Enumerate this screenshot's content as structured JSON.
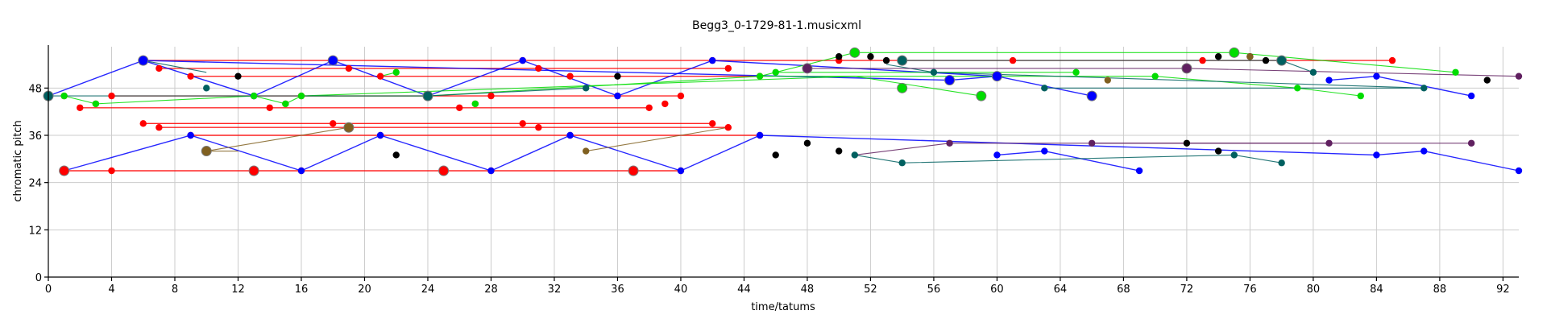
{
  "chart_data": {
    "type": "scatter",
    "title": "Begg3_0-1729-81-1.musicxml",
    "xlabel": "time/tatums",
    "ylabel": "chromatic pitch",
    "xlim": [
      0,
      93
    ],
    "ylim": [
      0,
      58.5
    ],
    "xticks": [
      0,
      4,
      8,
      12,
      16,
      20,
      24,
      28,
      32,
      36,
      40,
      44,
      48,
      52,
      56,
      60,
      64,
      68,
      72,
      76,
      80,
      84,
      88,
      92
    ],
    "yticks": [
      0,
      12,
      24,
      36,
      48
    ],
    "grid": true,
    "series": [
      {
        "color": "#ff0000",
        "points": [
          [
            1,
            27
          ],
          [
            4,
            27
          ],
          [
            13,
            27
          ],
          [
            16,
            27
          ],
          [
            25,
            27
          ],
          [
            28,
            27
          ],
          [
            37,
            27
          ],
          [
            40,
            27
          ],
          [
            6,
            55
          ],
          [
            7,
            53
          ],
          [
            9,
            51
          ],
          [
            18,
            55
          ],
          [
            19,
            53
          ],
          [
            21,
            51
          ],
          [
            30,
            55
          ],
          [
            31,
            53
          ],
          [
            33,
            51
          ],
          [
            42,
            55
          ],
          [
            43,
            53
          ],
          [
            45,
            51
          ],
          [
            4,
            46
          ],
          [
            2,
            43
          ],
          [
            14,
            43
          ],
          [
            16,
            46
          ],
          [
            26,
            43
          ],
          [
            28,
            46
          ],
          [
            38,
            43
          ],
          [
            40,
            46
          ],
          [
            6,
            39
          ],
          [
            7,
            38
          ],
          [
            9,
            36
          ],
          [
            18,
            39
          ],
          [
            19,
            38
          ],
          [
            21,
            36
          ],
          [
            30,
            39
          ],
          [
            31,
            38
          ],
          [
            33,
            36
          ],
          [
            42,
            39
          ],
          [
            43,
            38
          ],
          [
            45,
            36
          ],
          [
            50,
            55
          ],
          [
            61,
            55
          ],
          [
            73,
            55
          ],
          [
            85,
            55
          ],
          [
            1,
            46
          ],
          [
            3,
            44
          ],
          [
            13,
            46
          ],
          [
            15,
            44
          ],
          [
            27,
            44
          ],
          [
            39,
            44
          ],
          [
            36,
            46
          ]
        ],
        "big": [
          [
            1,
            27
          ],
          [
            13,
            27
          ],
          [
            25,
            27
          ],
          [
            37,
            27
          ]
        ],
        "lines": [
          [
            [
              1,
              27
            ],
            [
              40,
              27
            ]
          ],
          [
            [
              6,
              55
            ],
            [
              85,
              55
            ]
          ],
          [
            [
              7,
              53
            ],
            [
              43,
              53
            ]
          ],
          [
            [
              9,
              51
            ],
            [
              45,
              51
            ]
          ],
          [
            [
              4,
              46
            ],
            [
              40,
              46
            ]
          ],
          [
            [
              2,
              43
            ],
            [
              38,
              43
            ]
          ],
          [
            [
              6,
              39
            ],
            [
              42,
              39
            ]
          ],
          [
            [
              7,
              38
            ],
            [
              43,
              38
            ]
          ],
          [
            [
              9,
              36
            ],
            [
              45,
              36
            ]
          ]
        ]
      },
      {
        "color": "#0000ff",
        "points": [
          [
            0,
            46
          ],
          [
            6,
            55
          ],
          [
            13,
            46
          ],
          [
            18,
            55
          ],
          [
            24,
            46
          ],
          [
            30,
            55
          ],
          [
            36,
            46
          ],
          [
            42,
            55
          ],
          [
            9,
            36
          ],
          [
            16,
            27
          ],
          [
            21,
            36
          ],
          [
            28,
            27
          ],
          [
            33,
            36
          ],
          [
            40,
            27
          ],
          [
            45,
            36
          ],
          [
            57,
            50
          ],
          [
            60,
            51
          ],
          [
            66,
            46
          ],
          [
            81,
            50
          ],
          [
            84,
            51
          ],
          [
            90,
            46
          ],
          [
            60,
            31
          ],
          [
            63,
            32
          ],
          [
            69,
            27
          ],
          [
            84,
            31
          ],
          [
            87,
            32
          ],
          [
            93,
            27
          ],
          [
            48,
            53
          ]
        ],
        "big": [
          [
            6,
            55
          ],
          [
            18,
            55
          ],
          [
            57,
            50
          ],
          [
            60,
            51
          ],
          [
            66,
            46
          ]
        ],
        "lines": [
          [
            [
              0,
              46
            ],
            [
              6,
              55
            ],
            [
              13,
              46
            ],
            [
              18,
              55
            ],
            [
              24,
              46
            ],
            [
              30,
              55
            ],
            [
              36,
              46
            ],
            [
              42,
              55
            ],
            [
              60,
              51
            ],
            [
              66,
              46
            ]
          ],
          [
            [
              6,
              55
            ],
            [
              57,
              50
            ],
            [
              60,
              51
            ]
          ],
          [
            [
              1,
              27
            ],
            [
              9,
              36
            ],
            [
              16,
              27
            ],
            [
              21,
              36
            ],
            [
              28,
              27
            ],
            [
              33,
              36
            ],
            [
              40,
              27
            ],
            [
              45,
              36
            ],
            [
              84,
              31
            ],
            [
              87,
              32
            ],
            [
              93,
              27
            ]
          ],
          [
            [
              60,
              31
            ],
            [
              63,
              32
            ],
            [
              69,
              27
            ]
          ],
          [
            [
              81,
              50
            ],
            [
              84,
              51
            ],
            [
              90,
              46
            ]
          ]
        ]
      },
      {
        "color": "#00dd00",
        "points": [
          [
            1,
            46
          ],
          [
            3,
            44
          ],
          [
            13,
            46
          ],
          [
            15,
            44
          ],
          [
            16,
            46
          ],
          [
            22,
            52
          ],
          [
            24,
            46
          ],
          [
            27,
            44
          ],
          [
            45,
            51
          ],
          [
            46,
            52
          ],
          [
            51,
            57
          ],
          [
            54,
            48
          ],
          [
            59,
            46
          ],
          [
            65,
            52
          ],
          [
            70,
            51
          ],
          [
            75,
            57
          ],
          [
            79,
            48
          ],
          [
            83,
            46
          ],
          [
            89,
            52
          ]
        ],
        "big": [
          [
            51,
            57
          ],
          [
            54,
            48
          ],
          [
            59,
            46
          ],
          [
            75,
            57
          ]
        ],
        "lines": [
          [
            [
              1,
              46
            ],
            [
              3,
              44
            ],
            [
              13,
              46
            ],
            [
              15,
              44
            ],
            [
              16,
              46
            ],
            [
              24,
              46
            ],
            [
              45,
              51
            ],
            [
              51,
              57
            ],
            [
              75,
              57
            ],
            [
              89,
              52
            ]
          ],
          [
            [
              16,
              46
            ],
            [
              51,
              51
            ],
            [
              59,
              46
            ]
          ],
          [
            [
              21,
              51
            ],
            [
              22,
              52
            ]
          ],
          [
            [
              45,
              51
            ],
            [
              70,
              51
            ],
            [
              79,
              48
            ],
            [
              83,
              46
            ]
          ],
          [
            [
              46,
              52
            ],
            [
              65,
              52
            ]
          ]
        ]
      },
      {
        "color": "#006060",
        "points": [
          [
            0,
            46
          ],
          [
            10,
            48
          ],
          [
            24,
            46
          ],
          [
            34,
            48
          ],
          [
            54,
            55
          ],
          [
            56,
            52
          ],
          [
            63,
            48
          ],
          [
            78,
            55
          ],
          [
            80,
            52
          ],
          [
            87,
            48
          ],
          [
            51,
            31
          ],
          [
            54,
            29
          ],
          [
            75,
            31
          ],
          [
            78,
            29
          ]
        ],
        "big": [
          [
            0,
            46
          ],
          [
            24,
            46
          ],
          [
            54,
            55
          ],
          [
            78,
            55
          ]
        ],
        "lines": [
          [
            [
              0,
              46
            ],
            [
              24,
              46
            ],
            [
              34,
              48
            ]
          ],
          [
            [
              6,
              55
            ],
            [
              10,
              52
            ]
          ],
          [
            [
              54,
              55
            ],
            [
              78,
              55
            ],
            [
              80,
              52
            ]
          ],
          [
            [
              53,
              54
            ],
            [
              56,
              52
            ],
            [
              87,
              48
            ]
          ],
          [
            [
              51,
              31
            ],
            [
              54,
              29
            ],
            [
              75,
              31
            ],
            [
              78,
              29
            ]
          ],
          [
            [
              63,
              48
            ],
            [
              87,
              48
            ]
          ]
        ]
      },
      {
        "color": "#000000",
        "points": [
          [
            12,
            51
          ],
          [
            22,
            31
          ],
          [
            36,
            51
          ],
          [
            46,
            31
          ],
          [
            48,
            34
          ],
          [
            50,
            32
          ],
          [
            50,
            56
          ],
          [
            52,
            56
          ],
          [
            53,
            55
          ],
          [
            72,
            34
          ],
          [
            74,
            32
          ],
          [
            74,
            56
          ],
          [
            76,
            56
          ],
          [
            77,
            55
          ],
          [
            91,
            50
          ]
        ],
        "big": [],
        "lines": []
      },
      {
        "color": "#602060",
        "points": [
          [
            48,
            53
          ],
          [
            57,
            34
          ],
          [
            66,
            34
          ],
          [
            72,
            53
          ],
          [
            81,
            34
          ],
          [
            90,
            34
          ],
          [
            93,
            51
          ]
        ],
        "big": [
          [
            48,
            53
          ],
          [
            72,
            53
          ]
        ],
        "lines": [
          [
            [
              51,
              31
            ],
            [
              57,
              34
            ],
            [
              81,
              34
            ]
          ],
          [
            [
              66,
              34
            ],
            [
              90,
              34
            ]
          ],
          [
            [
              48,
              53
            ],
            [
              72,
              53
            ],
            [
              93,
              51
            ]
          ]
        ]
      },
      {
        "color": "#806020",
        "points": [
          [
            10,
            32
          ],
          [
            19,
            38
          ],
          [
            34,
            32
          ],
          [
            67,
            50
          ],
          [
            76,
            56
          ]
        ],
        "big": [
          [
            10,
            32
          ],
          [
            19,
            38
          ]
        ],
        "lines": [
          [
            [
              10,
              32
            ],
            [
              19,
              38
            ]
          ],
          [
            [
              34,
              32
            ],
            [
              43,
              38
            ]
          ],
          [
            [
              10,
              32
            ],
            [
              12,
              32
            ]
          ]
        ]
      }
    ]
  }
}
